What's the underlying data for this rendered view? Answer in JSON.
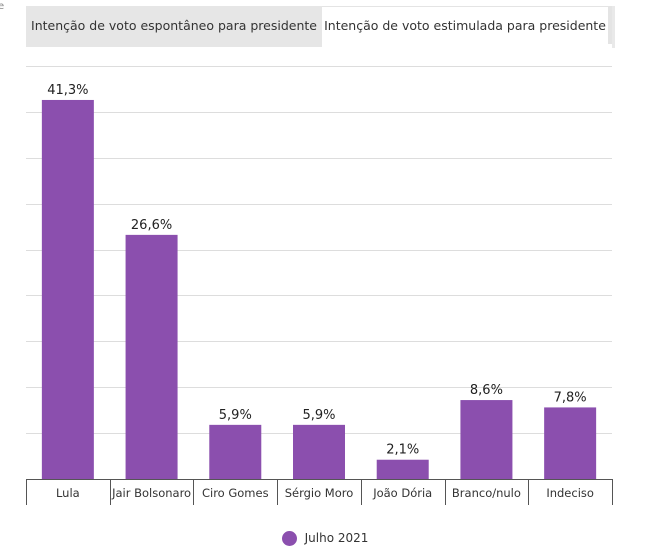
{
  "page": {
    "edge_text": "e"
  },
  "tabs": [
    {
      "label": "Intenção de voto espontâneo para presidente",
      "active": false
    },
    {
      "label": "Intenção de voto estimulada para presidente",
      "active": true
    }
  ],
  "colors": {
    "bar": "#8b4fae",
    "grid": "#dddddd",
    "axis": "#555555",
    "tick_text": "#333333",
    "label_text": "#222222"
  },
  "chart_data": {
    "type": "bar",
    "categories": [
      "Lula",
      "Jair Bolsonaro",
      "Ciro Gomes",
      "Sérgio Moro",
      "João Dória",
      "Branco/nulo",
      "Indeciso"
    ],
    "series": [
      {
        "name": "Julho 2021",
        "values": [
          41.3,
          26.6,
          5.9,
          5.9,
          2.1,
          8.6,
          7.8
        ],
        "labels": [
          "41,3%",
          "26,6%",
          "5,9%",
          "5,9%",
          "2,1%",
          "8,6%",
          "7,8%"
        ]
      }
    ],
    "ylim": [
      0,
      45
    ],
    "grid": true,
    "legend": "bottom-center",
    "title": "",
    "xlabel": "",
    "ylabel": ""
  }
}
